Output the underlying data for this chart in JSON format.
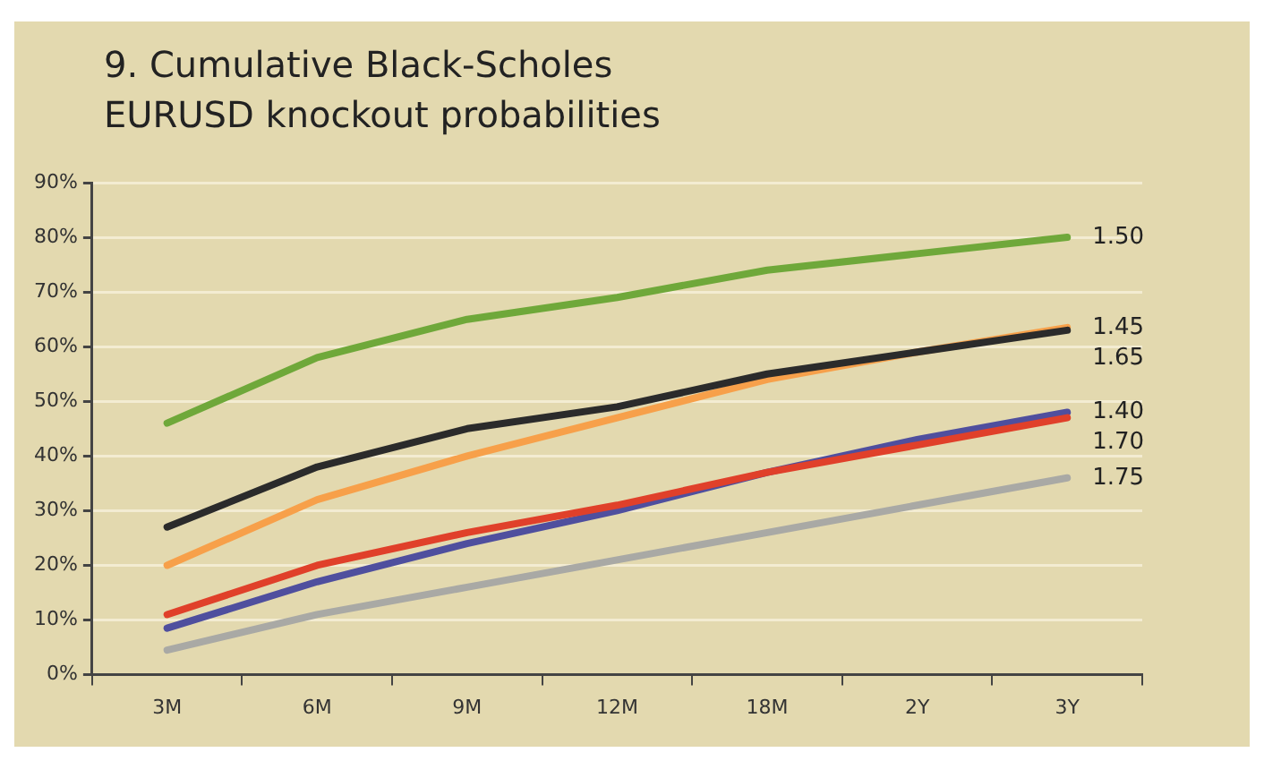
{
  "chart_data": {
    "type": "line",
    "title": "9. Cumulative Black-Scholes EURUSD knockout probabilities",
    "categories": [
      "3M",
      "6M",
      "9M",
      "12M",
      "18M",
      "2Y",
      "3Y"
    ],
    "series": [
      {
        "name": "1.50",
        "color": "#6fa83a",
        "values": [
          46,
          58,
          65,
          69,
          74,
          77,
          80
        ]
      },
      {
        "name": "1.45",
        "color": "#f7a04a",
        "values": [
          20,
          32,
          40,
          47,
          54,
          59,
          63.5
        ]
      },
      {
        "name": "1.65",
        "color": "#2b2b2b",
        "values": [
          27,
          38,
          45,
          49,
          55,
          59,
          63
        ]
      },
      {
        "name": "1.40",
        "color": "#4f4f9e",
        "values": [
          8.5,
          17,
          24,
          30,
          37,
          43,
          48
        ]
      },
      {
        "name": "1.70",
        "color": "#e0402a",
        "values": [
          11,
          20,
          26,
          31,
          37,
          42,
          47
        ]
      },
      {
        "name": "1.75",
        "color": "#a9a9a5",
        "values": [
          4.5,
          11,
          16,
          21,
          26,
          31,
          36
        ]
      }
    ],
    "ylim": [
      0,
      90
    ],
    "yticks": [
      {
        "value": 0,
        "label": "0%"
      },
      {
        "value": 10,
        "label": "10%"
      },
      {
        "value": 20,
        "label": "20%"
      },
      {
        "value": 30,
        "label": "30%"
      },
      {
        "value": 40,
        "label": "40%"
      },
      {
        "value": 50,
        "label": "50%"
      },
      {
        "value": 60,
        "label": "60%"
      },
      {
        "value": 70,
        "label": "70%"
      },
      {
        "value": 80,
        "label": "80%"
      },
      {
        "value": 90,
        "label": "90%"
      }
    ],
    "grid": "y",
    "legend": false,
    "marker": "none",
    "line_style": "solid"
  }
}
